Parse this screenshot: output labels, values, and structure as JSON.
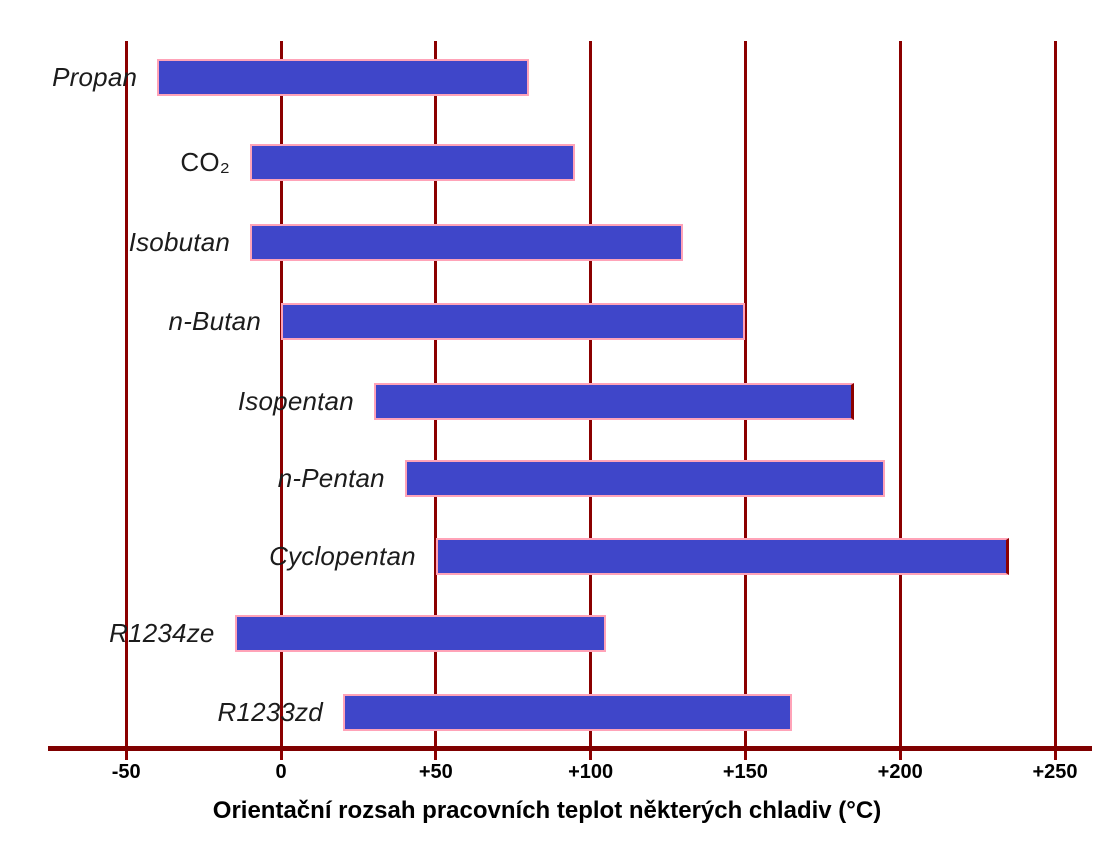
{
  "chart_data": {
    "type": "bar",
    "orientation": "horizontal",
    "xlabel": "Orientační rozsah pracovních teplot některých chladiv (°C)",
    "unit": "°C",
    "xlim": [
      -75,
      262
    ],
    "grid": "vertical-only",
    "legend": "none",
    "x_tick_values": [
      -50,
      0,
      50,
      100,
      150,
      200,
      250
    ],
    "x_tick_labels": [
      "-50",
      "0",
      "+50",
      "+100",
      "+150",
      "+200",
      "+250"
    ],
    "categories": [
      "Propan",
      "CO₂",
      "Isobutan",
      "n-Butan",
      "Isopentan",
      "n-Pentan",
      "Cyclopentan",
      "R1234ze",
      "R1233zd"
    ],
    "bars": [
      {
        "label": "Propan",
        "min": -40,
        "max": 80,
        "italic": true,
        "dark_right_edge": false
      },
      {
        "label": "CO₂",
        "min": -10,
        "max": 95,
        "italic": false,
        "dark_right_edge": false
      },
      {
        "label": "Isobutan",
        "min": -10,
        "max": 130,
        "italic": true,
        "dark_right_edge": false
      },
      {
        "label": "n-Butan",
        "min": 0,
        "max": 150,
        "italic": true,
        "dark_right_edge": false
      },
      {
        "label": "Isopentan",
        "min": 30,
        "max": 185,
        "italic": true,
        "dark_right_edge": true
      },
      {
        "label": "n-Pentan",
        "min": 40,
        "max": 195,
        "italic": true,
        "dark_right_edge": false
      },
      {
        "label": "Cyclopentan",
        "min": 50,
        "max": 235,
        "italic": true,
        "dark_right_edge": true
      },
      {
        "label": "R1234ze",
        "min": -15,
        "max": 105,
        "italic": true,
        "dark_right_edge": false
      },
      {
        "label": "R1233zd",
        "min": 20,
        "max": 165,
        "italic": true,
        "dark_right_edge": false
      }
    ]
  },
  "colors": {
    "background": "#FFFFFF",
    "bar_fill": "#3F46C9",
    "bar_border": "#FFA3B8",
    "bar_dark_edge": "#8B0000",
    "gridline": "#8B0000",
    "axis": "#7F0000",
    "tick_text": "#000000",
    "label_text": "#1C1C1C",
    "title_text": "#000000"
  }
}
